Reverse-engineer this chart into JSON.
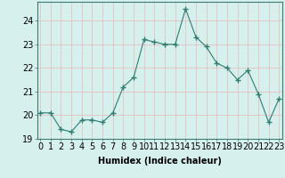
{
  "x": [
    0,
    1,
    2,
    3,
    4,
    5,
    6,
    7,
    8,
    9,
    10,
    11,
    12,
    13,
    14,
    15,
    16,
    17,
    18,
    19,
    20,
    21,
    22,
    23
  ],
  "y": [
    20.1,
    20.1,
    19.4,
    19.3,
    19.8,
    19.8,
    19.7,
    20.1,
    21.2,
    21.6,
    23.2,
    23.1,
    23.0,
    23.0,
    24.5,
    23.3,
    22.9,
    22.2,
    22.0,
    21.5,
    21.9,
    20.9,
    19.7,
    20.7
  ],
  "line_color": "#2e7d6e",
  "marker": "+",
  "marker_size": 4,
  "bg_color": "#d6f0ee",
  "grid_color_v": "#c8dbd9",
  "grid_color_h": "#e8b8b8",
  "xlabel": "Humidex (Indice chaleur)",
  "xlabel_fontsize": 7,
  "tick_fontsize": 7,
  "ylim": [
    19,
    24.8
  ],
  "yticks": [
    19,
    20,
    21,
    22,
    23,
    24
  ],
  "xticks": [
    0,
    1,
    2,
    3,
    4,
    5,
    6,
    7,
    8,
    9,
    10,
    11,
    12,
    13,
    14,
    15,
    16,
    17,
    18,
    19,
    20,
    21,
    22,
    23
  ],
  "xlim": [
    -0.3,
    23.3
  ]
}
